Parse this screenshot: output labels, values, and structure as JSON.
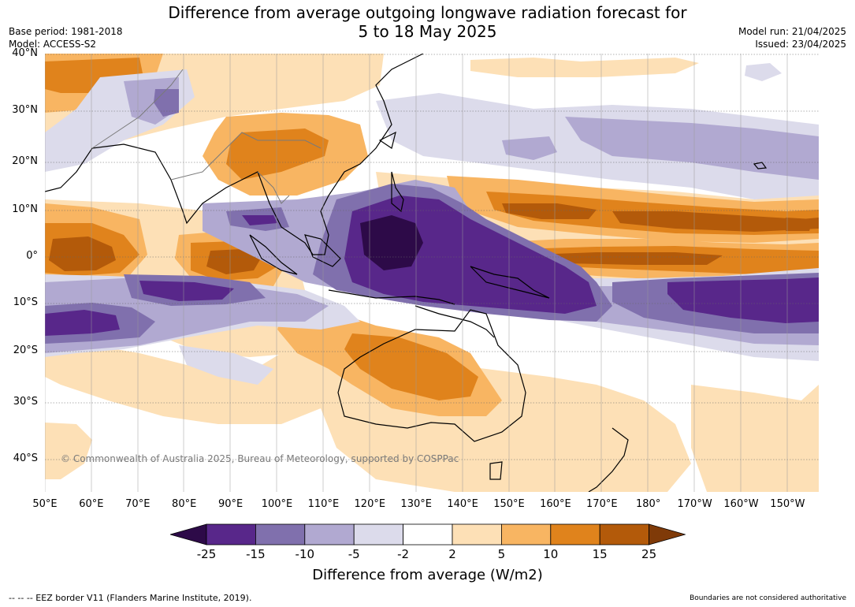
{
  "title": {
    "line1": "Difference from average outgoing longwave radiation forecast for",
    "line2": "5 to 18 May 2025"
  },
  "meta_left": {
    "base_period": "Base period: 1981-2018",
    "model": "Model: ACCESS-S2"
  },
  "meta_right": {
    "model_run": "Model run: 21/04/2025",
    "issued": "Issued: 23/04/2025"
  },
  "map": {
    "lat_labels": [
      "40°N",
      "30°N",
      "20°N",
      "10°N",
      "0°",
      "10°S",
      "20°S",
      "30°S",
      "40°S"
    ],
    "lon_labels": [
      "50°E",
      "60°E",
      "70°E",
      "80°E",
      "90°E",
      "100°E",
      "110°E",
      "120°E",
      "130°E",
      "140°E",
      "150°E",
      "160°E",
      "170°E",
      "180°",
      "170°W",
      "160°W",
      "150°W"
    ],
    "copyright": "© Commonwealth of Australia 2025, Bureau of Meteorology, supported by COSPPac"
  },
  "colorbar": {
    "ticks": [
      "-25",
      "-15",
      "-10",
      "-5",
      "-2",
      "2",
      "5",
      "10",
      "15",
      "25"
    ],
    "colors": [
      "#2d0a48",
      "#58278a",
      "#8070ad",
      "#b1a9d1",
      "#dcdbeb",
      "#ffffff",
      "#fde0b6",
      "#f8b562",
      "#e0831c",
      "#b35a0a",
      "#7f3a08"
    ],
    "label": "Difference from average (W/m2)"
  },
  "footer": {
    "eez": "--  --  -- EEZ border V11 (Flanders Marine Institute, 2019).",
    "disclaimer": "Boundaries are not considered authoritative"
  }
}
